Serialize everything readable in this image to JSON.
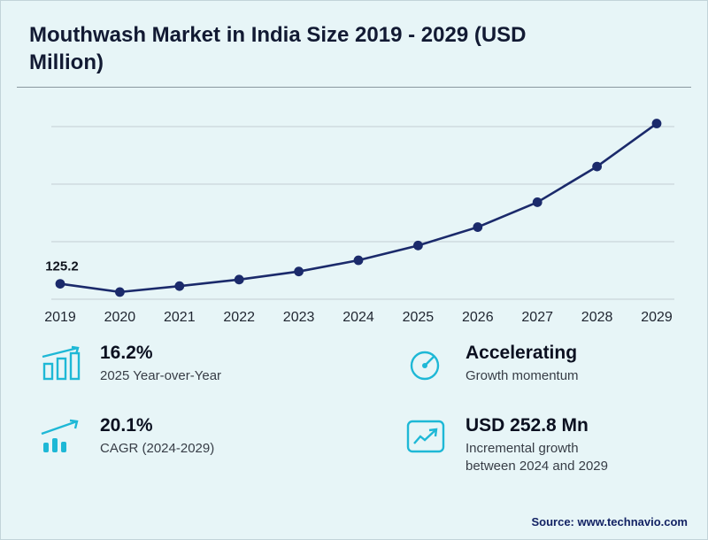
{
  "title": "Mouthwash Market in India Size 2019 - 2029 (USD Million)",
  "chart_data": {
    "type": "line",
    "x": [
      "2019",
      "2020",
      "2021",
      "2022",
      "2023",
      "2024",
      "2025",
      "2026",
      "2027",
      "2028",
      "2029"
    ],
    "values": [
      125.2,
      110.0,
      121.0,
      133.0,
      148.0,
      168.7,
      196.0,
      230.0,
      276.0,
      342.0,
      421.5
    ],
    "point_label": "125.2",
    "ylim": [
      100,
      460
    ],
    "grid": true,
    "legend": "none",
    "title": "Mouthwash Market in India Size 2019 - 2029 (USD Million)",
    "xlabel": "",
    "ylabel": ""
  },
  "stats": [
    {
      "icon": "bar-growth-icon",
      "value": "16.2%",
      "label": "2025 Year-over-Year"
    },
    {
      "icon": "gauge-icon",
      "value": "Accelerating",
      "label": "Growth momentum"
    },
    {
      "icon": "bars-arrow-icon",
      "value": "20.1%",
      "label": "CAGR (2024-2029)"
    },
    {
      "icon": "chart-box-icon",
      "value": "USD 252.8 Mn",
      "label": "Incremental growth between 2024 and 2029"
    }
  ],
  "source": "Source: www.technavio.com",
  "colors": {
    "background": "#e7f5f7",
    "line": "#1b2a6b",
    "accent": "#1eb8d6",
    "grid": "#c3cdd3"
  }
}
